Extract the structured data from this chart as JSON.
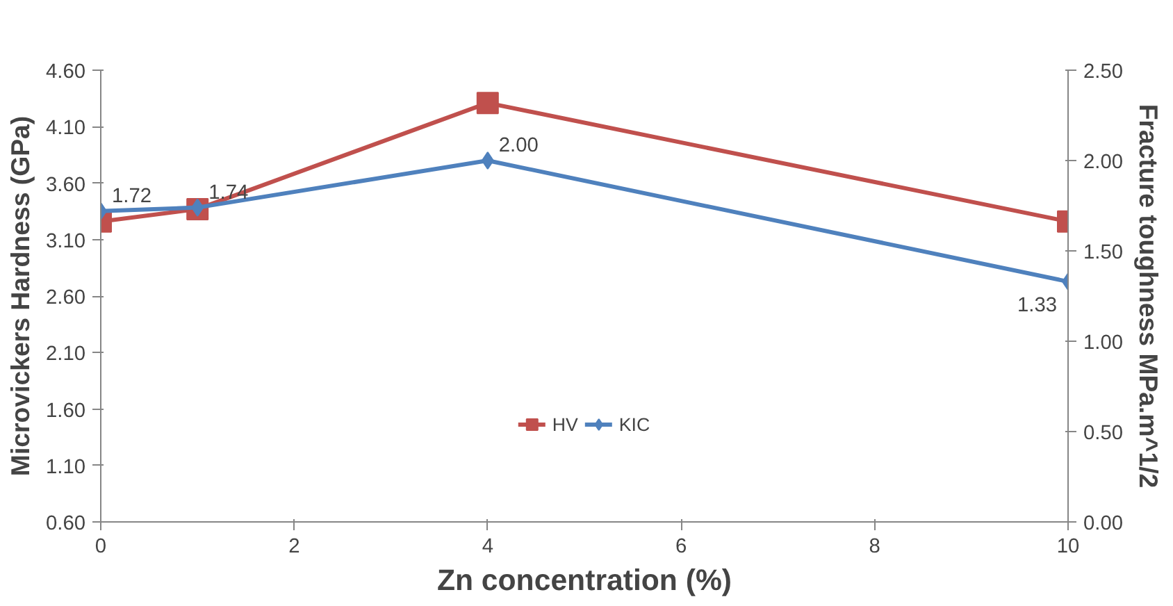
{
  "chart_data": {
    "type": "line",
    "xlabel": "Zn concentration (%)",
    "ylabel": "Microvickers Hardness (GPa)",
    "y2label": "Fracture toughness MPa.m^1/2",
    "x": [
      0,
      1,
      4,
      10
    ],
    "series": [
      {
        "name": "HV",
        "color": "#c0504d",
        "values": [
          3.26,
          3.37,
          4.31,
          3.26
        ],
        "marker": "square"
      },
      {
        "name": "KIC",
        "color": "#4f81bd",
        "values": [
          1.72,
          1.74,
          2.0,
          1.33
        ],
        "axis": "y2",
        "marker": "diamond",
        "value_labels": [
          "1.72",
          "1.74",
          "2.00",
          "1.33"
        ]
      }
    ],
    "xlim": [
      0,
      10
    ],
    "xticks": [
      0,
      2,
      4,
      6,
      8,
      10
    ],
    "ylim": [
      0.6,
      4.6
    ],
    "yticks": [
      {
        "value": 0.6,
        "label": "0.60"
      },
      {
        "value": 1.1,
        "label": "1.10"
      },
      {
        "value": 1.6,
        "label": "1.60"
      },
      {
        "value": 2.1,
        "label": "2.10"
      },
      {
        "value": 2.6,
        "label": "2.60"
      },
      {
        "value": 3.1,
        "label": "3.10"
      },
      {
        "value": 3.6,
        "label": "3.60"
      },
      {
        "value": 4.1,
        "label": "4.10"
      },
      {
        "value": 4.6,
        "label": "4.60"
      }
    ],
    "y2lim": [
      0,
      2.5
    ],
    "y2ticks": [
      {
        "value": 0,
        "label": "0.00"
      },
      {
        "value": 0.5,
        "label": "0.50"
      },
      {
        "value": 1.0,
        "label": "1.00"
      },
      {
        "value": 1.5,
        "label": "1.50"
      },
      {
        "value": 2.0,
        "label": "2.00"
      },
      {
        "value": 2.5,
        "label": "2.50"
      }
    ],
    "grid": false,
    "legend": "bottom",
    "line_style": "solid"
  }
}
